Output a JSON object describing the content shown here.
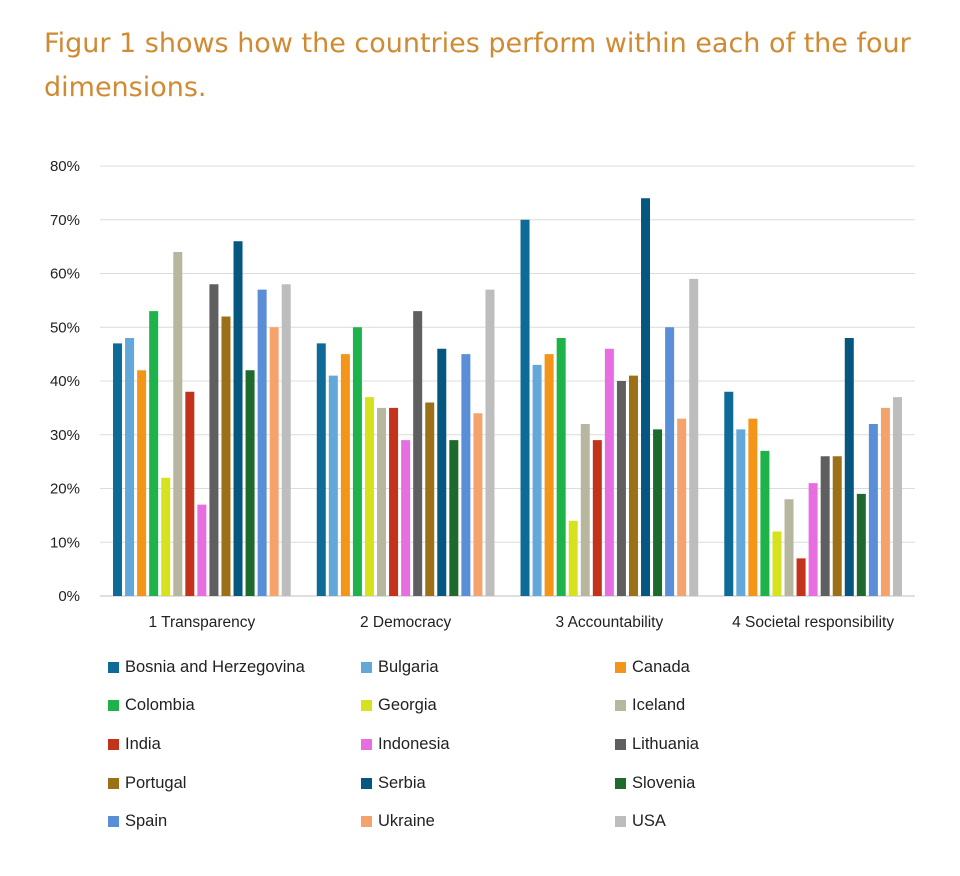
{
  "heading": "Figur 1 shows how the countries perform within each of the four dimensions.",
  "chart_data": {
    "type": "bar",
    "categories": [
      "1 Transparency",
      "2 Democracy",
      "3 Accountability",
      "4 Societal responsibility"
    ],
    "ylim": [
      0,
      80
    ],
    "yticks": [
      "0%",
      "10%",
      "20%",
      "30%",
      "40%",
      "50%",
      "60%",
      "70%",
      "80%"
    ],
    "grid": true,
    "legend_position": "bottom",
    "series": [
      {
        "name": "Bosnia and Herzegovina",
        "color": "#0e6a96",
        "values": [
          47,
          47,
          70,
          38
        ]
      },
      {
        "name": "Bulgaria",
        "color": "#63a8d8",
        "values": [
          48,
          41,
          43,
          31
        ]
      },
      {
        "name": "Canada",
        "color": "#f39519",
        "values": [
          42,
          45,
          45,
          33
        ]
      },
      {
        "name": "Colombia",
        "color": "#1eb24a",
        "values": [
          53,
          50,
          48,
          27
        ]
      },
      {
        "name": "Georgia",
        "color": "#d7e21f",
        "values": [
          22,
          37,
          14,
          12
        ]
      },
      {
        "name": "Iceland",
        "color": "#b7b79f",
        "values": [
          64,
          35,
          32,
          18
        ]
      },
      {
        "name": "India",
        "color": "#c3321a",
        "values": [
          38,
          35,
          29,
          7
        ]
      },
      {
        "name": "Indonesia",
        "color": "#e66ee0",
        "values": [
          17,
          29,
          46,
          21
        ]
      },
      {
        "name": "Lithuania",
        "color": "#5f5f5f",
        "values": [
          58,
          53,
          40,
          26
        ]
      },
      {
        "name": "Portugal",
        "color": "#9c7016",
        "values": [
          52,
          36,
          41,
          26
        ]
      },
      {
        "name": "Serbia",
        "color": "#05577f",
        "values": [
          66,
          46,
          74,
          48
        ]
      },
      {
        "name": "Slovenia",
        "color": "#1e6a2c",
        "values": [
          42,
          29,
          31,
          19
        ]
      },
      {
        "name": "Spain",
        "color": "#5a8fd8",
        "values": [
          57,
          45,
          50,
          32
        ]
      },
      {
        "name": "Ukraine",
        "color": "#f5a36c",
        "values": [
          50,
          34,
          33,
          35
        ]
      },
      {
        "name": "USA",
        "color": "#bdbdbd",
        "values": [
          58,
          57,
          59,
          37
        ]
      }
    ]
  }
}
